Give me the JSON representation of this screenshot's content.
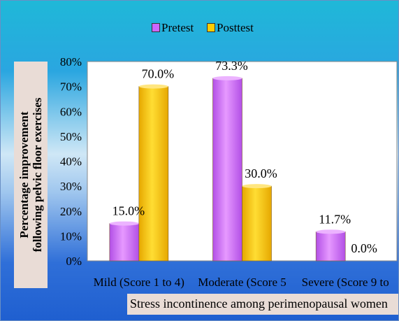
{
  "chart_data": {
    "type": "bar",
    "categories": [
      "Mild (Score 1 to 4)",
      "Moderate (Score 5",
      "Severe (Score 9 to"
    ],
    "series": [
      {
        "name": "Pretest",
        "values": [
          15.0,
          73.3,
          11.7
        ],
        "labels": [
          "15.0%",
          "73.3%",
          "11.7%"
        ],
        "color": "#cc66ff"
      },
      {
        "name": "Posttest",
        "values": [
          70.0,
          30.0,
          0.0
        ],
        "labels": [
          "70.0%",
          "30.0%",
          "0.0%"
        ],
        "color": "#ffcc00"
      }
    ],
    "ylim": [
      0,
      80
    ],
    "yticks": [
      "0%",
      "10%",
      "20%",
      "30%",
      "40%",
      "50%",
      "60%",
      "70%",
      "80%"
    ],
    "ylabel_lines": [
      "Percentage improvement",
      "following pelvic floor exercises"
    ],
    "xlabel": "Stress incontinence among perimenopausal women",
    "legend_position": "top",
    "grid": false
  }
}
